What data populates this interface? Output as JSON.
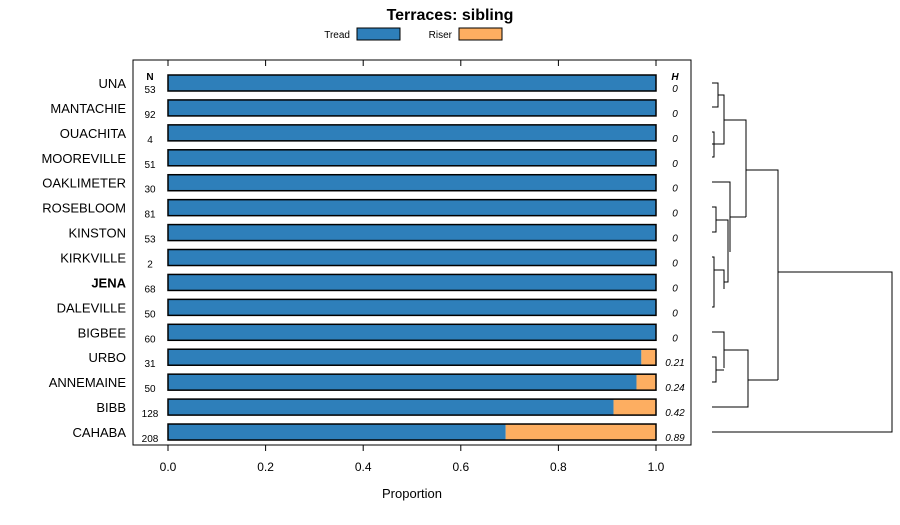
{
  "chart_data": {
    "type": "bar",
    "orientation": "horizontal",
    "stacked": true,
    "title": "Terraces: sibling",
    "xlabel": "Proportion",
    "ylabel": "",
    "xlim": [
      0,
      1
    ],
    "xticks": [
      "0.0",
      "0.2",
      "0.4",
      "0.6",
      "0.8",
      "1.0"
    ],
    "legend": [
      {
        "name": "Tread",
        "color": "#2e7fba"
      },
      {
        "name": "Riser",
        "color": "#fdae61"
      }
    ],
    "column_headers": {
      "n": "N",
      "h": "H"
    },
    "highlight": "JENA",
    "categories": [
      "UNA",
      "MANTACHIE",
      "OUACHITA",
      "MOOREVILLE",
      "OAKLIMETER",
      "ROSEBLOOM",
      "KINSTON",
      "KIRKVILLE",
      "JENA",
      "DALEVILLE",
      "BIGBEE",
      "URBO",
      "ANNEMAINE",
      "BIBB",
      "CAHABA"
    ],
    "n": [
      "53",
      "92",
      "4",
      "51",
      "30",
      "81",
      "53",
      "2",
      "68",
      "50",
      "60",
      "31",
      "50",
      "128",
      "208"
    ],
    "h": [
      "0",
      "0",
      "0",
      "0",
      "0",
      "0",
      "0",
      "0",
      "0",
      "0",
      "0",
      "0.21",
      "0.24",
      "0.42",
      "0.89"
    ],
    "series": [
      {
        "name": "Tread",
        "values": [
          1,
          1,
          1,
          1,
          1,
          1,
          1,
          1,
          1,
          1,
          1,
          0.97,
          0.96,
          0.913,
          0.692
        ]
      },
      {
        "name": "Riser",
        "values": [
          0,
          0,
          0,
          0,
          0,
          0,
          0,
          0,
          0,
          0,
          0,
          0.03,
          0.04,
          0.087,
          0.308
        ]
      }
    ]
  }
}
